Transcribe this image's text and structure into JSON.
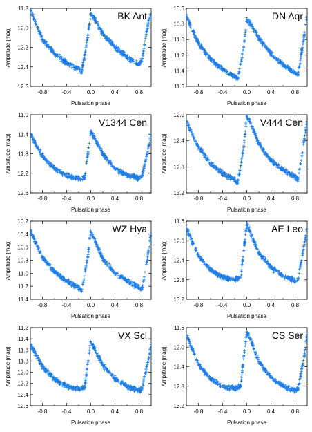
{
  "chart_data": [
    {
      "type": "scatter",
      "title": "BK Ant",
      "xlabel": "Pulsation phase",
      "ylabel": "Amplitude [mag]",
      "xlim": [
        -1.0,
        1.0
      ],
      "ylim": [
        11.8,
        12.6
      ],
      "y_inverted": true,
      "x_ticks": [
        "-0.8",
        "-0.4",
        "0.0",
        "0.4",
        "0.8"
      ],
      "y_ticks": [
        "11.8",
        "12.0",
        "12.2",
        "12.4",
        "12.6"
      ],
      "series": [
        {
          "color": "#1f7ee6",
          "marker": "plus",
          "points": [
            [
              -1.0,
              11.82
            ],
            [
              -0.8,
              12.12
            ],
            [
              -0.6,
              12.26
            ],
            [
              -0.4,
              12.36
            ],
            [
              -0.2,
              12.42
            ],
            [
              -0.15,
              12.45
            ],
            [
              -0.05,
              12.1
            ],
            [
              0.0,
              11.86
            ],
            [
              0.05,
              11.9
            ],
            [
              0.2,
              12.06
            ],
            [
              0.4,
              12.2
            ],
            [
              0.6,
              12.3
            ],
            [
              0.8,
              12.38
            ],
            [
              0.85,
              12.32
            ],
            [
              0.95,
              11.95
            ],
            [
              1.0,
              11.82
            ]
          ]
        }
      ]
    },
    {
      "type": "scatter",
      "title": "DN Aqr",
      "xlabel": "Pulsation phase",
      "ylabel": "Amplitude [mag]",
      "xlim": [
        -1.0,
        1.0
      ],
      "ylim": [
        10.6,
        11.6
      ],
      "y_inverted": true,
      "x_ticks": [
        "-0.8",
        "-0.4",
        "0.0",
        "0.4",
        "0.8"
      ],
      "y_ticks": [
        "10.6",
        "10.8",
        "11.0",
        "11.2",
        "11.4",
        "11.6"
      ],
      "series": [
        {
          "color": "#1f7ee6",
          "marker": "plus",
          "points": [
            [
              -1.0,
              10.7
            ],
            [
              -0.8,
              11.05
            ],
            [
              -0.6,
              11.25
            ],
            [
              -0.4,
              11.38
            ],
            [
              -0.2,
              11.47
            ],
            [
              -0.15,
              11.5
            ],
            [
              -0.05,
              11.1
            ],
            [
              0.0,
              10.74
            ],
            [
              0.05,
              10.78
            ],
            [
              0.2,
              10.98
            ],
            [
              0.4,
              11.18
            ],
            [
              0.6,
              11.32
            ],
            [
              0.8,
              11.43
            ],
            [
              0.85,
              11.45
            ],
            [
              0.95,
              10.95
            ],
            [
              1.0,
              10.7
            ]
          ]
        }
      ]
    },
    {
      "type": "scatter",
      "title": "V1344 Cen",
      "xlabel": "Pulsation phase",
      "ylabel": "Amplitude [mag]",
      "xlim": [
        -1.0,
        1.0
      ],
      "ylim": [
        11.0,
        12.6
      ],
      "y_inverted": true,
      "x_ticks": [
        "-0.8",
        "-0.4",
        "0.0",
        "0.4",
        "0.8"
      ],
      "y_ticks": [
        "11.0",
        "11.4",
        "11.8",
        "12.2",
        "12.6"
      ],
      "series": [
        {
          "color": "#1f7ee6",
          "marker": "plus",
          "points": [
            [
              -1.0,
              11.4
            ],
            [
              -0.8,
              11.85
            ],
            [
              -0.6,
              12.1
            ],
            [
              -0.4,
              12.25
            ],
            [
              -0.2,
              12.3
            ],
            [
              -0.1,
              12.28
            ],
            [
              -0.05,
              11.8
            ],
            [
              0.0,
              11.35
            ],
            [
              0.05,
              11.45
            ],
            [
              0.2,
              11.8
            ],
            [
              0.4,
              12.1
            ],
            [
              0.6,
              12.25
            ],
            [
              0.8,
              12.3
            ],
            [
              0.85,
              12.25
            ],
            [
              0.95,
              11.7
            ],
            [
              1.0,
              11.4
            ]
          ]
        }
      ]
    },
    {
      "type": "scatter",
      "title": "V444 Cen",
      "xlabel": "Pulsation phase",
      "ylabel": "Amplitude [mag]",
      "xlim": [
        -1.0,
        1.0
      ],
      "ylim": [
        12.0,
        13.2
      ],
      "y_inverted": true,
      "x_ticks": [
        "-0.8",
        "-0.4",
        "0.0",
        "0.4",
        "0.8"
      ],
      "y_ticks": [
        "12.0",
        "12.4",
        "12.8",
        "13.2"
      ],
      "series": [
        {
          "color": "#1f7ee6",
          "marker": "plus",
          "points": [
            [
              -1.0,
              12.1
            ],
            [
              -0.8,
              12.5
            ],
            [
              -0.6,
              12.75
            ],
            [
              -0.4,
              12.9
            ],
            [
              -0.2,
              13.0
            ],
            [
              -0.15,
              13.05
            ],
            [
              -0.05,
              12.5
            ],
            [
              0.0,
              12.02
            ],
            [
              0.05,
              12.1
            ],
            [
              0.2,
              12.45
            ],
            [
              0.4,
              12.7
            ],
            [
              0.6,
              12.85
            ],
            [
              0.8,
              12.95
            ],
            [
              0.85,
              13.0
            ],
            [
              0.95,
              12.4
            ],
            [
              1.0,
              12.1
            ]
          ]
        }
      ]
    },
    {
      "type": "scatter",
      "title": "WZ Hya",
      "xlabel": "Pulsation phase",
      "ylabel": "Amplitude [mag]",
      "xlim": [
        -1.0,
        1.0
      ],
      "ylim": [
        10.2,
        11.4
      ],
      "y_inverted": true,
      "x_ticks": [
        "-0.8",
        "-0.4",
        "0.0",
        "0.4",
        "0.8"
      ],
      "y_ticks": [
        "10.2",
        "10.4",
        "10.6",
        "10.8",
        "11.0",
        "11.2",
        "11.4"
      ],
      "series": [
        {
          "color": "#1f7ee6",
          "marker": "plus",
          "points": [
            [
              -1.0,
              10.35
            ],
            [
              -0.8,
              10.75
            ],
            [
              -0.6,
              10.98
            ],
            [
              -0.4,
              11.12
            ],
            [
              -0.2,
              11.22
            ],
            [
              -0.15,
              11.28
            ],
            [
              -0.05,
              10.75
            ],
            [
              0.0,
              10.35
            ],
            [
              0.05,
              10.45
            ],
            [
              0.2,
              10.78
            ],
            [
              0.4,
              11.0
            ],
            [
              0.6,
              11.12
            ],
            [
              0.8,
              11.22
            ],
            [
              0.85,
              11.25
            ],
            [
              0.95,
              10.7
            ],
            [
              1.0,
              10.38
            ]
          ]
        }
      ]
    },
    {
      "type": "scatter",
      "title": "AE Leo",
      "xlabel": "Pulsation phase",
      "ylabel": "Amplitude [mag]",
      "xlim": [
        -1.0,
        1.0
      ],
      "ylim": [
        11.6,
        13.2
      ],
      "y_inverted": true,
      "x_ticks": [
        "-0.8",
        "-0.4",
        "0.0",
        "0.4",
        "0.8"
      ],
      "y_ticks": [
        "11.6",
        "12.0",
        "12.4",
        "12.8",
        "13.2"
      ],
      "series": [
        {
          "color": "#1f7ee6",
          "marker": "plus",
          "points": [
            [
              -1.0,
              11.75
            ],
            [
              -0.8,
              12.3
            ],
            [
              -0.6,
              12.6
            ],
            [
              -0.4,
              12.75
            ],
            [
              -0.2,
              12.8
            ],
            [
              -0.1,
              12.75
            ],
            [
              -0.05,
              12.2
            ],
            [
              0.0,
              11.68
            ],
            [
              0.05,
              11.8
            ],
            [
              0.2,
              12.25
            ],
            [
              0.4,
              12.55
            ],
            [
              0.6,
              12.72
            ],
            [
              0.8,
              12.82
            ],
            [
              0.85,
              12.78
            ],
            [
              0.95,
              12.1
            ],
            [
              1.0,
              11.75
            ]
          ]
        }
      ]
    },
    {
      "type": "scatter",
      "title": "VX Scl",
      "xlabel": "Pulsation phase",
      "ylabel": "Amplitude [mag]",
      "xlim": [
        -1.0,
        1.0
      ],
      "ylim": [
        11.2,
        12.6
      ],
      "y_inverted": true,
      "x_ticks": [
        "-0.8",
        "-0.4",
        "0.0",
        "0.4",
        "0.8"
      ],
      "y_ticks": [
        "11.2",
        "11.4",
        "11.6",
        "11.8",
        "12.0",
        "12.2",
        "12.4",
        "12.6"
      ],
      "series": [
        {
          "color": "#1f7ee6",
          "marker": "plus",
          "points": [
            [
              -1.0,
              11.5
            ],
            [
              -0.8,
              11.9
            ],
            [
              -0.6,
              12.12
            ],
            [
              -0.4,
              12.25
            ],
            [
              -0.2,
              12.3
            ],
            [
              -0.1,
              12.28
            ],
            [
              -0.05,
              11.85
            ],
            [
              0.0,
              11.45
            ],
            [
              0.05,
              11.55
            ],
            [
              0.2,
              11.88
            ],
            [
              0.4,
              12.12
            ],
            [
              0.6,
              12.25
            ],
            [
              0.8,
              12.32
            ],
            [
              0.85,
              12.28
            ],
            [
              0.95,
              11.8
            ],
            [
              1.0,
              11.5
            ]
          ]
        }
      ]
    },
    {
      "type": "scatter",
      "title": "CS Ser",
      "xlabel": "Pulsation phase",
      "ylabel": "Amplitude [mag]",
      "xlim": [
        -1.0,
        1.0
      ],
      "ylim": [
        11.6,
        13.2
      ],
      "y_inverted": true,
      "x_ticks": [
        "-0.8",
        "-0.4",
        "0.0",
        "0.4",
        "0.8"
      ],
      "y_ticks": [
        "11.6",
        "12.0",
        "12.4",
        "12.8",
        "13.2"
      ],
      "series": [
        {
          "color": "#1f7ee6",
          "marker": "plus",
          "points": [
            [
              -1.0,
              11.75
            ],
            [
              -0.8,
              12.35
            ],
            [
              -0.6,
              12.65
            ],
            [
              -0.4,
              12.8
            ],
            [
              -0.2,
              12.85
            ],
            [
              -0.1,
              12.8
            ],
            [
              -0.05,
              12.2
            ],
            [
              0.0,
              11.7
            ],
            [
              0.05,
              11.8
            ],
            [
              0.2,
              12.3
            ],
            [
              0.4,
              12.62
            ],
            [
              0.6,
              12.8
            ],
            [
              0.8,
              12.9
            ],
            [
              0.85,
              12.85
            ],
            [
              0.95,
              12.2
            ],
            [
              1.0,
              11.75
            ]
          ]
        }
      ]
    }
  ]
}
